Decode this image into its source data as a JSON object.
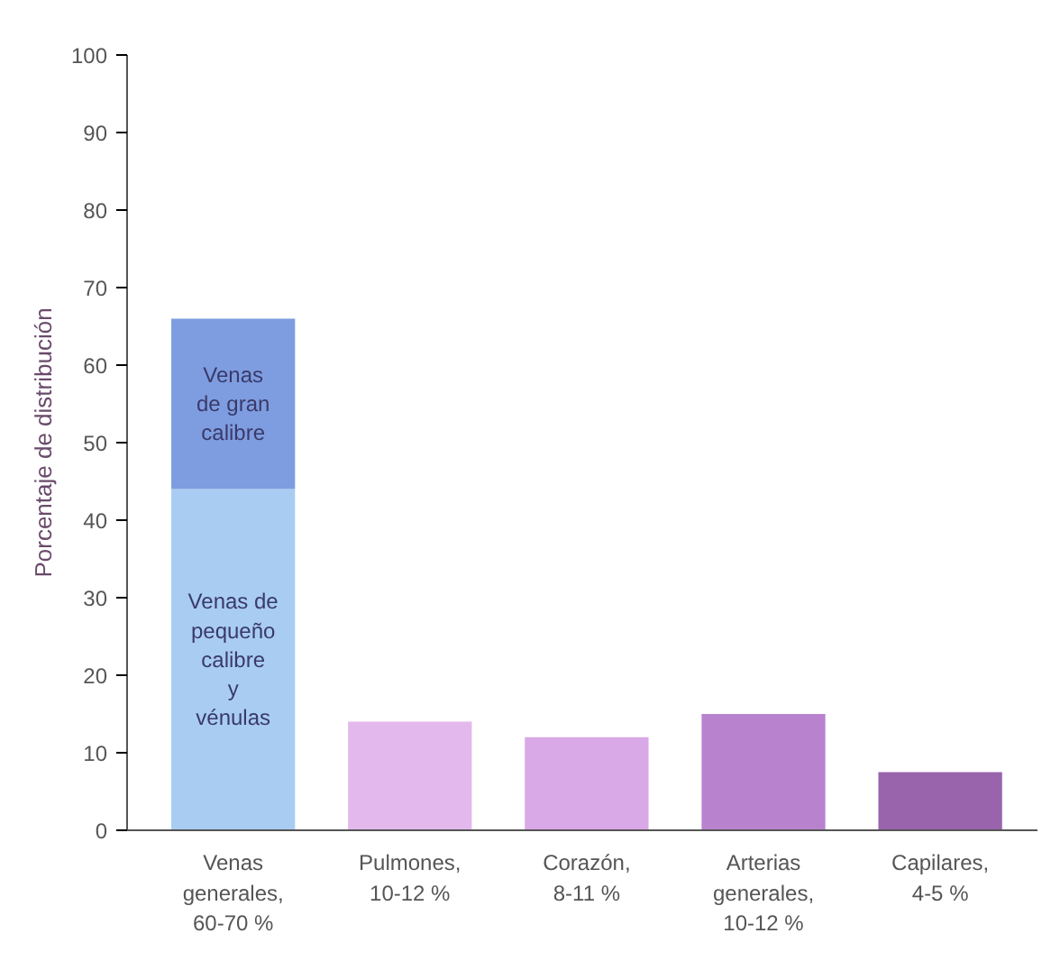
{
  "chart_data": {
    "type": "bar",
    "ylabel": "Porcentaje de distribución",
    "categories": [
      "Venas\ngenerales,\n60-70 %",
      "Pulmones,\n10-12 %",
      "Corazón,\n8-11 %",
      "Arterias\ngenerales,\n10-12 %",
      "Capilares,\n4-5 %"
    ],
    "stacked": true,
    "series": [
      {
        "colors": [
          "#a9cdf2",
          "#e3b8ec",
          "#d9a8e6",
          "#b982cf",
          "#9a64ad"
        ],
        "values": [
          44,
          14,
          12,
          15,
          7.5
        ]
      },
      {
        "colors": [
          "#7e9de0",
          null,
          null,
          null,
          null
        ],
        "values": [
          22,
          null,
          null,
          null,
          null
        ]
      }
    ],
    "ylim": [
      0,
      100
    ],
    "yticks": [
      0,
      10,
      20,
      30,
      40,
      50,
      60,
      70,
      80,
      90,
      100
    ],
    "grid": false,
    "annotations": [
      "Venas\nde gran\ncalibre",
      "Venas de\npequeño\ncalibre\ny\nvénulas"
    ]
  }
}
